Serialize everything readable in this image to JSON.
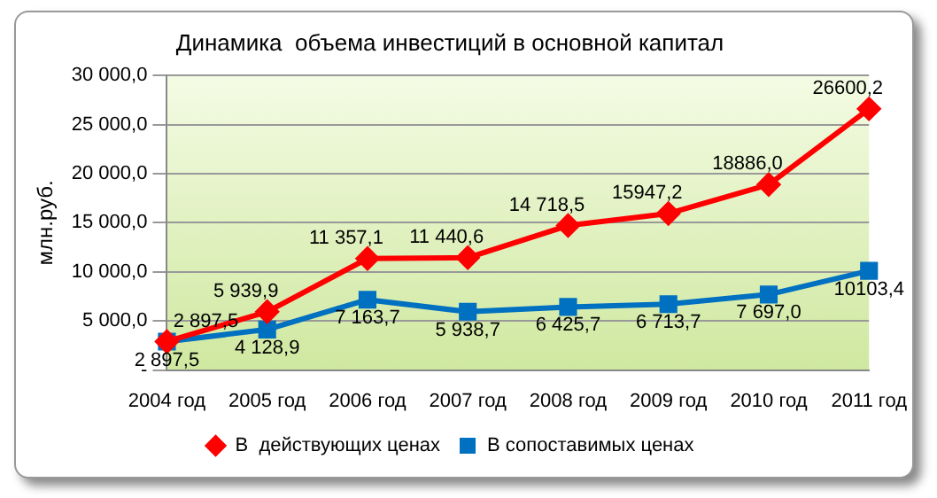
{
  "chart_data": {
    "type": "line",
    "title": "Динамика  объема инвестиций в основной капитал",
    "ylabel": "млн.руб.",
    "categories": [
      "2004 год",
      "2005 год",
      "2006 год",
      "2007 год",
      "2008 год",
      "2009 год",
      "2010 год",
      "2011 год"
    ],
    "series": [
      {
        "name": "В  действующих ценах",
        "color": "#ff0000",
        "marker": "diamond",
        "values": [
          2897.5,
          5939.9,
          11357.1,
          11440.6,
          14718.5,
          15947.2,
          18886.0,
          26600.2
        ],
        "value_labels": [
          "2 897,5",
          "5 939,9",
          "11 357,1",
          "11 440,6",
          "14 718,5",
          "15947,2",
          "18886,0",
          "26600,2"
        ]
      },
      {
        "name": "В сопоставимых ценах",
        "color": "#0070c0",
        "marker": "square",
        "values": [
          2897.5,
          4128.9,
          7163.7,
          5938.7,
          6425.7,
          6713.7,
          7697.0,
          10103.4
        ],
        "value_labels": [
          "2 897,5",
          "4 128,9",
          "7 163,7",
          "5 938,7",
          "6 425,7",
          "6 713,7",
          "7 697,0",
          "10103,4"
        ]
      }
    ],
    "ylim": [
      0,
      30000
    ],
    "yticks": [
      {
        "value": 0,
        "label": "-"
      },
      {
        "value": 5000,
        "label": "5 000,0"
      },
      {
        "value": 10000,
        "label": "10 000,0"
      },
      {
        "value": 15000,
        "label": "15 000,0"
      },
      {
        "value": 20000,
        "label": "20 000,0"
      },
      {
        "value": 25000,
        "label": "25 000,0"
      },
      {
        "value": 30000,
        "label": "30 000,0"
      }
    ],
    "grid": "y",
    "legend": "bottom",
    "line_style": "solid"
  }
}
